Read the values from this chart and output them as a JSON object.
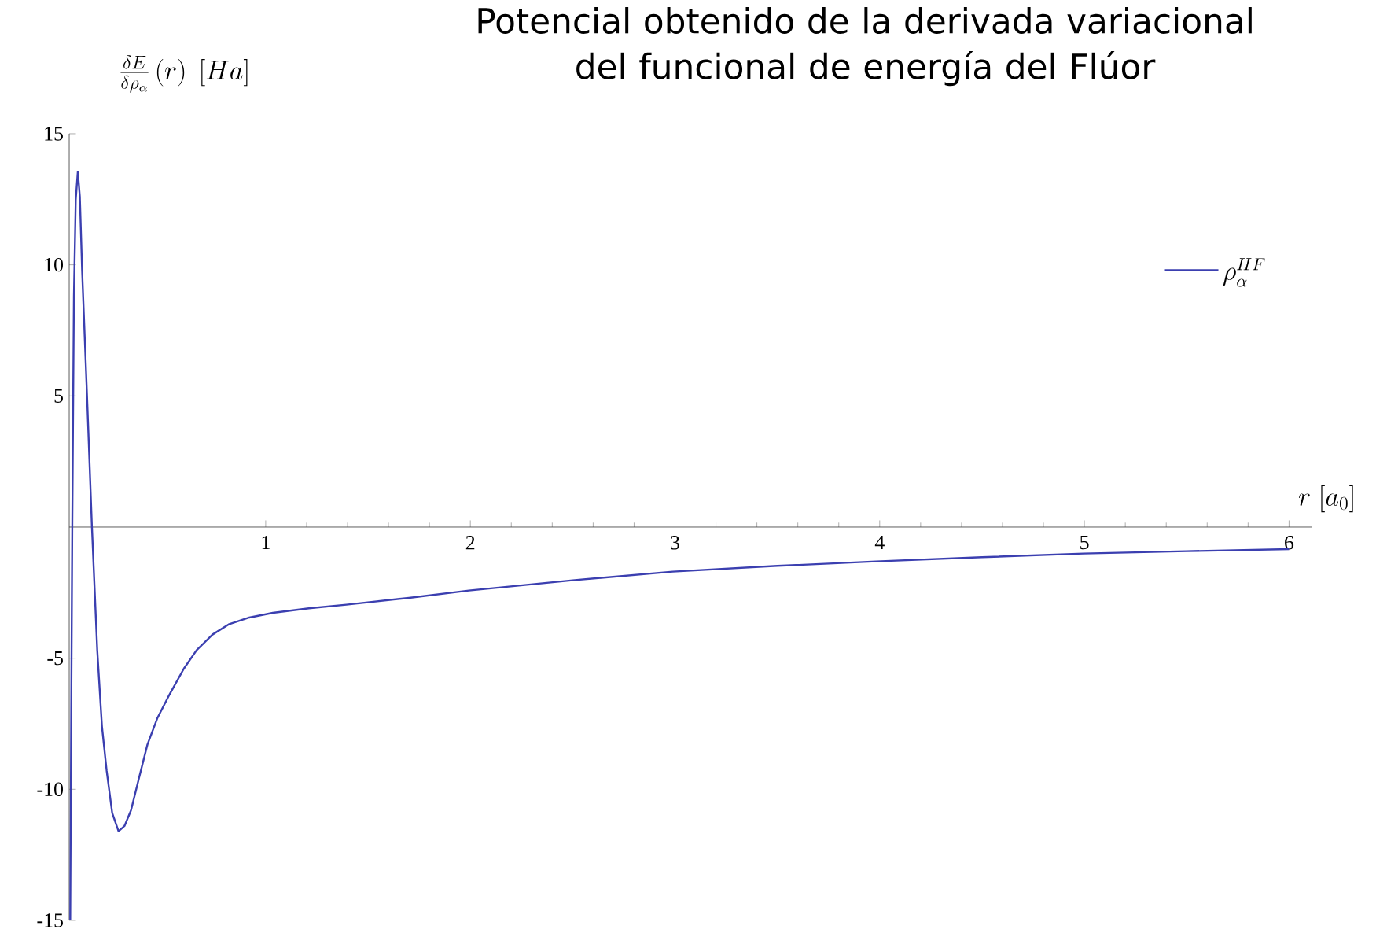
{
  "chart_data": {
    "type": "line",
    "title": "Potencial obtenido de la derivada variacional del funcional de energía del Flúor",
    "xlabel": "r\\;[a_0]",
    "ylabel": "\\frac{\\delta E}{\\delta \\rho_\\alpha}\\left(r\\right)\\;[Ha]",
    "series": [
      {
        "name": "\\rho_\\alpha^{HF}",
        "color": "#3b3fb0",
        "x": [
          0.045,
          0.05,
          0.055,
          0.063,
          0.072,
          0.082,
          0.092,
          0.103,
          0.129,
          0.151,
          0.177,
          0.2,
          0.223,
          0.25,
          0.281,
          0.31,
          0.342,
          0.38,
          0.422,
          0.47,
          0.529,
          0.6,
          0.662,
          0.74,
          0.822,
          0.92,
          1.035,
          1.211,
          1.394,
          1.7,
          1.993,
          2.5,
          2.989,
          3.5,
          3.983,
          4.5,
          4.996,
          5.5,
          6.0
        ],
        "values": [
          -15,
          -7,
          0,
          8.8,
          12.5,
          13.55,
          12.6,
          9.8,
          4.6,
          0,
          -4.7,
          -7.6,
          -9.3,
          -10.9,
          -11.6,
          -11.4,
          -10.8,
          -9.6,
          -8.3,
          -7.3,
          -6.4,
          -5.4,
          -4.7,
          -4.1,
          -3.7,
          -3.45,
          -3.27,
          -3.1,
          -2.96,
          -2.7,
          -2.42,
          -2.03,
          -1.7,
          -1.48,
          -1.31,
          -1.15,
          -1.01,
          -0.92,
          -0.84
        ]
      }
    ],
    "xlim": [
      0.04,
      6.11
    ],
    "ylim": [
      -15,
      15
    ],
    "xticks": [
      1,
      2,
      3,
      4,
      5,
      6
    ],
    "yticks": [
      -15,
      -10,
      -5,
      5,
      10,
      15
    ],
    "legend": "top right",
    "grid": false,
    "marker": "none",
    "line_style": "solid"
  }
}
